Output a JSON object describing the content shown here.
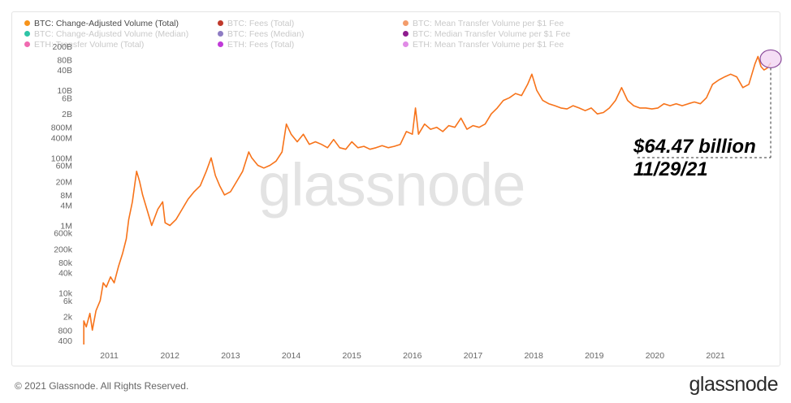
{
  "legend": [
    {
      "label": "BTC: Change-Adjusted Volume (Total)",
      "color": "#f7931a",
      "active": true
    },
    {
      "label": "BTC: Fees (Total)",
      "color": "#c0392b",
      "active": false
    },
    {
      "label": "BTC: Mean Transfer Volume per $1 Fee",
      "color": "#f39c6b",
      "active": false
    },
    {
      "label": "BTC: Change-Adjusted Volume (Median)",
      "color": "#2ec4a6",
      "active": false
    },
    {
      "label": "BTC: Fees (Median)",
      "color": "#8e7cc3",
      "active": false
    },
    {
      "label": "BTC: Median Transfer Volume per $1 Fee",
      "color": "#8e1c8e",
      "active": false
    },
    {
      "label": "ETH: Transfer Volume (Total)",
      "color": "#f06ab0",
      "active": false
    },
    {
      "label": "ETH: Fees (Total)",
      "color": "#c03ad8",
      "active": false
    },
    {
      "label": "ETH: Mean Transfer Volume per $1 Fee",
      "color": "#e08be6",
      "active": false
    }
  ],
  "watermark": "glassnode",
  "annotation": {
    "value": "$64.47 billion",
    "date": "11/29/21"
  },
  "footer": {
    "copyright": "© 2021 Glassnode. All Rights Reserved.",
    "logo": "glassnode"
  },
  "colors": {
    "line": "#f7731a",
    "highlight_fill": "#f3d6f3",
    "highlight_stroke": "#8a4a9a"
  },
  "chart_data": {
    "type": "line",
    "scale": "log",
    "series": [
      {
        "name": "BTC: Change-Adjusted Volume (Total)",
        "points": [
          [
            2010.58,
            1500
          ],
          [
            2010.62,
            1000
          ],
          [
            2010.68,
            2500
          ],
          [
            2010.72,
            800
          ],
          [
            2010.78,
            3000
          ],
          [
            2010.85,
            6000
          ],
          [
            2010.9,
            20000
          ],
          [
            2010.95,
            15000
          ],
          [
            2011.02,
            30000
          ],
          [
            2011.08,
            20000
          ],
          [
            2011.15,
            60000
          ],
          [
            2011.22,
            150000
          ],
          [
            2011.28,
            400000
          ],
          [
            2011.32,
            1500000
          ],
          [
            2011.38,
            5000000
          ],
          [
            2011.45,
            40000000
          ],
          [
            2011.5,
            20000000
          ],
          [
            2011.55,
            8000000
          ],
          [
            2011.62,
            3000000
          ],
          [
            2011.7,
            1000000
          ],
          [
            2011.8,
            3000000
          ],
          [
            2011.88,
            5000000
          ],
          [
            2011.92,
            1200000
          ],
          [
            2012.0,
            1000000
          ],
          [
            2012.1,
            1500000
          ],
          [
            2012.2,
            3000000
          ],
          [
            2012.3,
            6000000
          ],
          [
            2012.4,
            10000000
          ],
          [
            2012.5,
            15000000
          ],
          [
            2012.6,
            40000000
          ],
          [
            2012.68,
            100000000
          ],
          [
            2012.75,
            30000000
          ],
          [
            2012.82,
            15000000
          ],
          [
            2012.9,
            8000000
          ],
          [
            2013.0,
            10000000
          ],
          [
            2013.1,
            20000000
          ],
          [
            2013.2,
            40000000
          ],
          [
            2013.3,
            150000000
          ],
          [
            2013.35,
            100000000
          ],
          [
            2013.45,
            60000000
          ],
          [
            2013.55,
            50000000
          ],
          [
            2013.65,
            60000000
          ],
          [
            2013.75,
            80000000
          ],
          [
            2013.85,
            150000000
          ],
          [
            2013.92,
            1000000000
          ],
          [
            2014.0,
            500000000
          ],
          [
            2014.1,
            300000000
          ],
          [
            2014.2,
            500000000
          ],
          [
            2014.3,
            250000000
          ],
          [
            2014.4,
            300000000
          ],
          [
            2014.5,
            250000000
          ],
          [
            2014.6,
            200000000
          ],
          [
            2014.7,
            350000000
          ],
          [
            2014.8,
            200000000
          ],
          [
            2014.9,
            180000000
          ],
          [
            2015.0,
            300000000
          ],
          [
            2015.1,
            200000000
          ],
          [
            2015.2,
            220000000
          ],
          [
            2015.3,
            180000000
          ],
          [
            2015.4,
            200000000
          ],
          [
            2015.5,
            230000000
          ],
          [
            2015.6,
            200000000
          ],
          [
            2015.7,
            220000000
          ],
          [
            2015.8,
            250000000
          ],
          [
            2015.9,
            600000000
          ],
          [
            2016.0,
            500000000
          ],
          [
            2016.05,
            3000000000
          ],
          [
            2016.1,
            500000000
          ],
          [
            2016.2,
            1000000000
          ],
          [
            2016.3,
            700000000
          ],
          [
            2016.4,
            800000000
          ],
          [
            2016.5,
            600000000
          ],
          [
            2016.6,
            900000000
          ],
          [
            2016.7,
            800000000
          ],
          [
            2016.8,
            1500000000
          ],
          [
            2016.9,
            700000000
          ],
          [
            2017.0,
            900000000
          ],
          [
            2017.1,
            800000000
          ],
          [
            2017.2,
            1000000000
          ],
          [
            2017.3,
            2000000000
          ],
          [
            2017.4,
            3000000000
          ],
          [
            2017.5,
            5000000000
          ],
          [
            2017.6,
            6000000000
          ],
          [
            2017.7,
            8000000000
          ],
          [
            2017.8,
            7000000000
          ],
          [
            2017.9,
            15000000000
          ],
          [
            2017.97,
            30000000000
          ],
          [
            2018.05,
            10000000000
          ],
          [
            2018.15,
            5000000000
          ],
          [
            2018.25,
            4000000000
          ],
          [
            2018.35,
            3500000000
          ],
          [
            2018.45,
            3000000000
          ],
          [
            2018.55,
            2800000000
          ],
          [
            2018.65,
            3500000000
          ],
          [
            2018.75,
            3000000000
          ],
          [
            2018.85,
            2500000000
          ],
          [
            2018.95,
            3000000000
          ],
          [
            2019.05,
            2000000000
          ],
          [
            2019.15,
            2200000000
          ],
          [
            2019.25,
            3000000000
          ],
          [
            2019.35,
            5000000000
          ],
          [
            2019.45,
            12000000000
          ],
          [
            2019.55,
            5000000000
          ],
          [
            2019.65,
            3500000000
          ],
          [
            2019.75,
            3000000000
          ],
          [
            2019.85,
            3000000000
          ],
          [
            2019.95,
            2800000000
          ],
          [
            2020.05,
            3000000000
          ],
          [
            2020.15,
            4000000000
          ],
          [
            2020.25,
            3500000000
          ],
          [
            2020.35,
            4000000000
          ],
          [
            2020.45,
            3500000000
          ],
          [
            2020.55,
            4000000000
          ],
          [
            2020.65,
            4500000000
          ],
          [
            2020.75,
            4000000000
          ],
          [
            2020.85,
            6000000000
          ],
          [
            2020.95,
            15000000000
          ],
          [
            2021.05,
            20000000000
          ],
          [
            2021.15,
            25000000000
          ],
          [
            2021.25,
            30000000000
          ],
          [
            2021.35,
            25000000000
          ],
          [
            2021.45,
            12000000000
          ],
          [
            2021.55,
            15000000000
          ],
          [
            2021.65,
            60000000000
          ],
          [
            2021.7,
            100000000000
          ],
          [
            2021.75,
            50000000000
          ],
          [
            2021.8,
            40000000000
          ],
          [
            2021.85,
            45000000000
          ],
          [
            2021.91,
            64470000000
          ]
        ]
      }
    ],
    "x_ticks": [
      "2011",
      "2012",
      "2013",
      "2014",
      "2015",
      "2016",
      "2017",
      "2018",
      "2019",
      "2020",
      "2021"
    ],
    "x_tick_values": [
      2011,
      2012,
      2013,
      2014,
      2015,
      2016,
      2017,
      2018,
      2019,
      2020,
      2021
    ],
    "y_ticks": [
      "400",
      "800",
      "2k",
      "6k",
      "10k",
      "40k",
      "80k",
      "200k",
      "600k",
      "1M",
      "4M",
      "8M",
      "20M",
      "60M",
      "100M",
      "400M",
      "800M",
      "2B",
      "6B",
      "10B",
      "40B",
      "80B",
      "200B"
    ],
    "y_tick_values": [
      400,
      800,
      2000,
      6000,
      10000,
      40000,
      80000,
      200000,
      600000,
      1000000,
      4000000,
      8000000,
      20000000,
      60000000,
      100000000,
      400000000,
      800000000,
      2000000000,
      6000000000,
      10000000000,
      40000000000,
      80000000000,
      200000000000
    ],
    "xlim": [
      2010.55,
      2021.95
    ],
    "ylim": [
      300,
      200000000000
    ],
    "grid": false,
    "legend_position": "top-left"
  }
}
